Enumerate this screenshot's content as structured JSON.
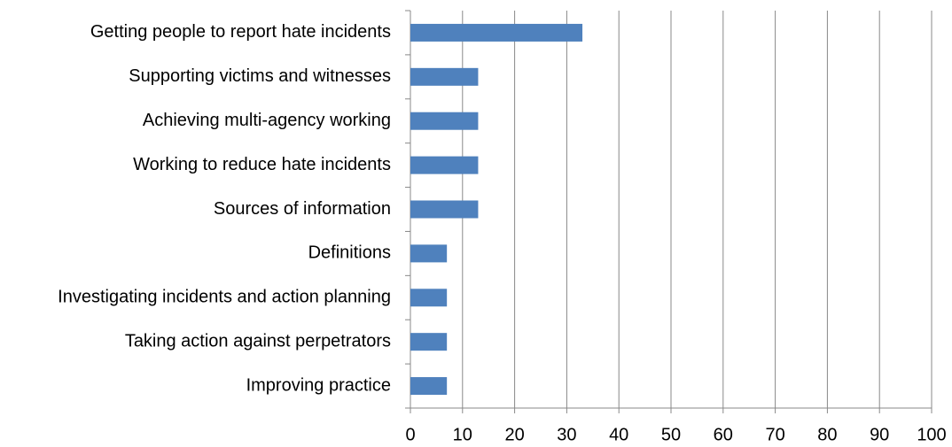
{
  "chart_data": {
    "type": "bar",
    "orientation": "horizontal",
    "categories": [
      "Getting people to report hate incidents",
      "Supporting victims and witnesses",
      "Achieving multi-agency working",
      "Working to reduce hate incidents",
      "Sources of information",
      "Definitions",
      "Investigating incidents and action planning",
      "Taking action against perpetrators",
      "Improving practice"
    ],
    "values": [
      33,
      13,
      13,
      13,
      13,
      7,
      7,
      7,
      7
    ],
    "color": "#4f81bd",
    "xlim": [
      0,
      100
    ],
    "xticks": [
      0,
      10,
      20,
      30,
      40,
      50,
      60,
      70,
      80,
      90,
      100
    ],
    "grid": true
  }
}
